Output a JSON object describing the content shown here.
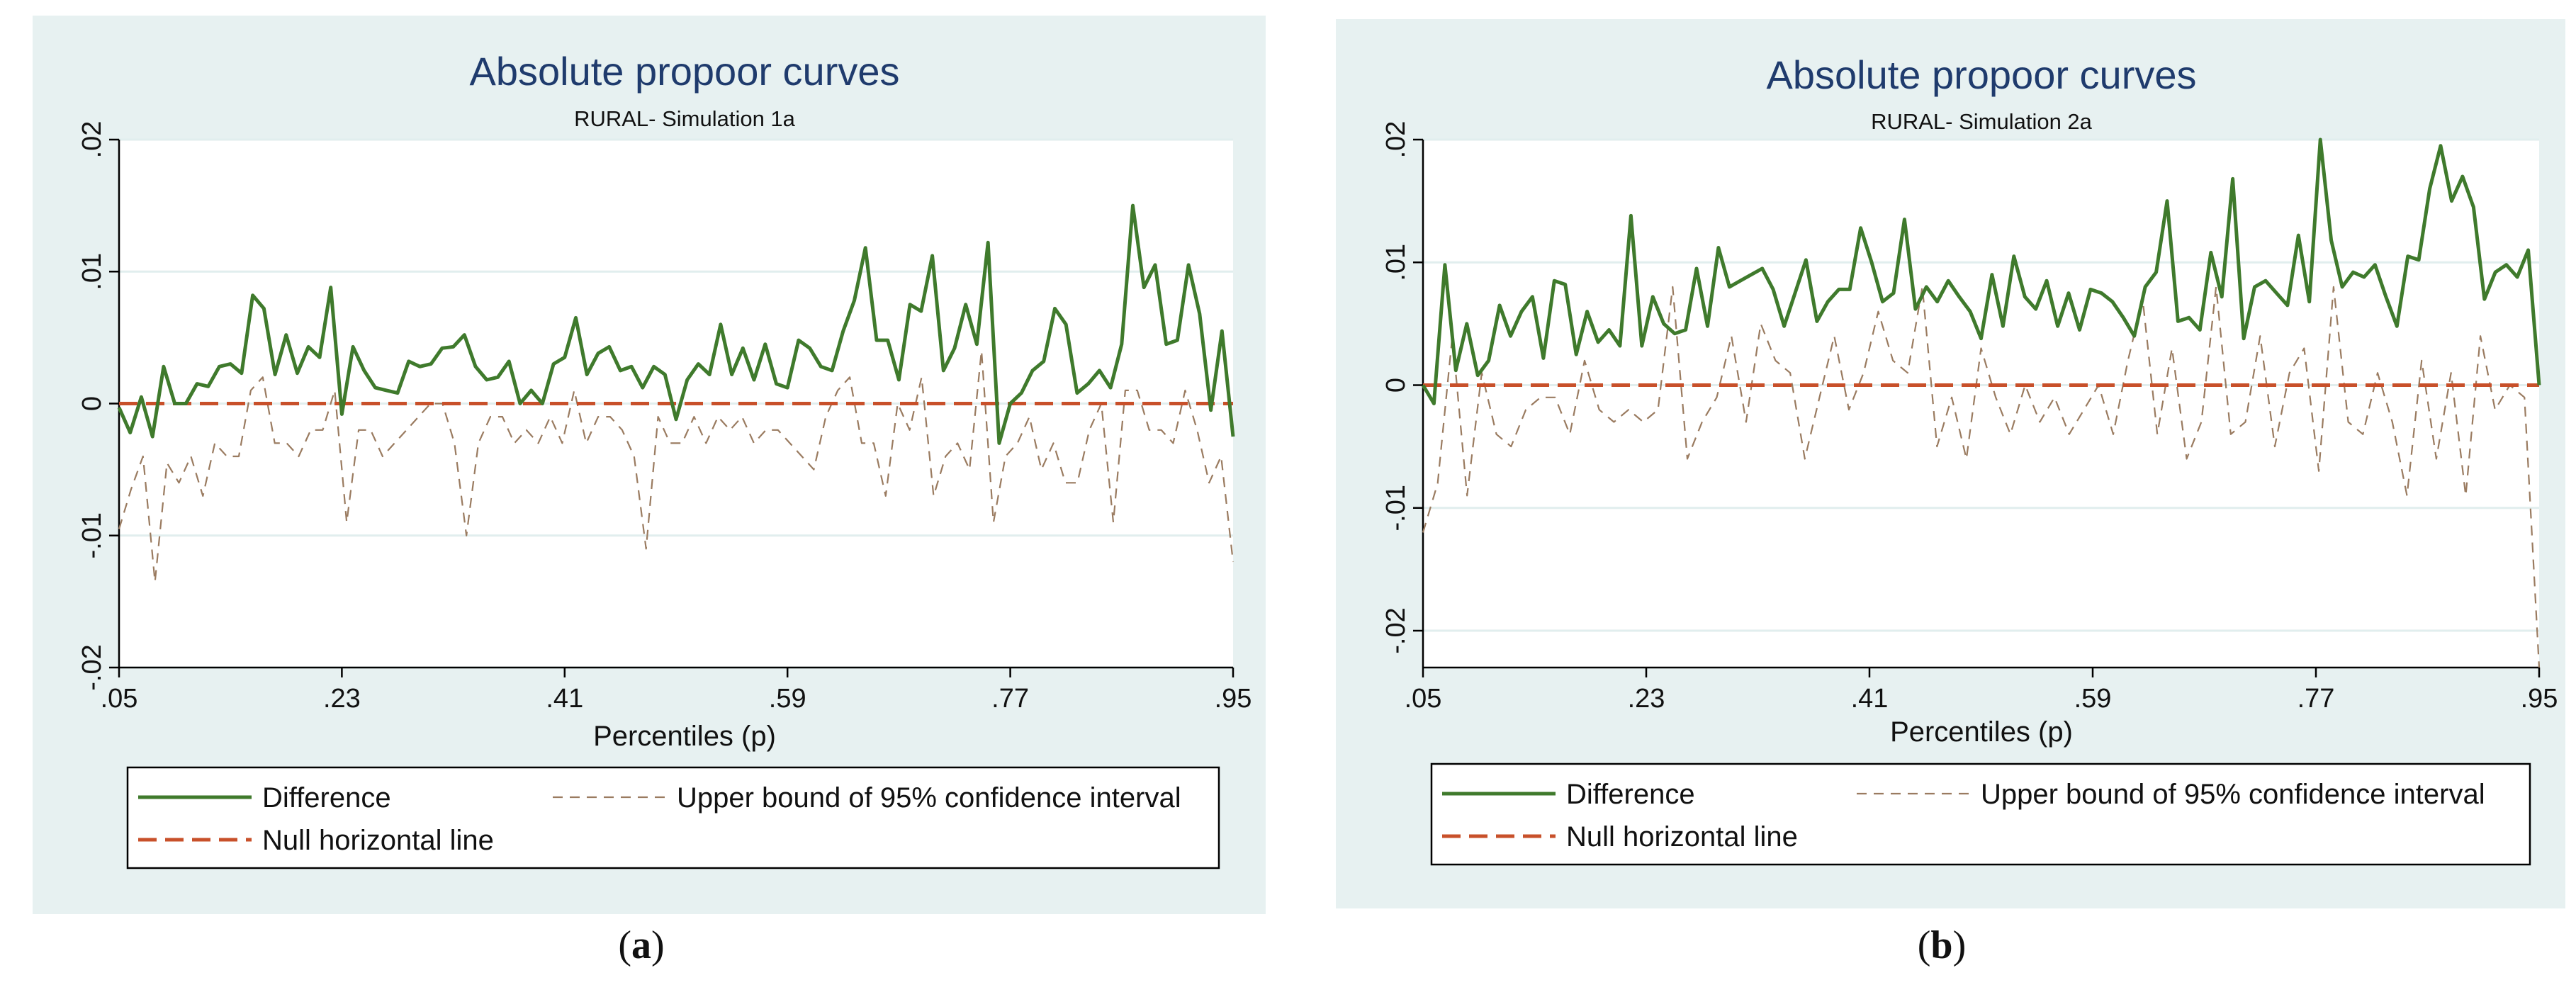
{
  "chart_data": [
    {
      "type": "line",
      "panel_label": "a",
      "title": "Absolute propoor curves",
      "subtitle": "RURAL- Simulation 1a",
      "xlabel": "Percentiles (p)",
      "ylabel": "",
      "xlim": [
        0.05,
        0.95
      ],
      "ylim": [
        -0.02,
        0.02
      ],
      "x_ticks": [
        0.05,
        0.23,
        0.41,
        0.59,
        0.77,
        0.95
      ],
      "x_tick_labels": [
        ".05",
        ".23",
        ".41",
        ".59",
        ".77",
        ".95"
      ],
      "y_ticks": [
        -0.02,
        -0.01,
        0,
        0.01,
        0.02
      ],
      "y_tick_labels": [
        "-.02",
        "-.01",
        "0",
        ".01",
        ".02"
      ],
      "legend": {
        "position": "bottom",
        "entries": [
          {
            "label": "Difference",
            "series": "difference"
          },
          {
            "label": "Upper bound of 95% confidence interval",
            "series": "upper"
          },
          {
            "label": "Null horizontal line",
            "series": "null"
          }
        ]
      },
      "series": [
        {
          "name": "Difference",
          "key": "difference",
          "color": "#3f7a2c",
          "style": "solid",
          "x_start": 0.05,
          "x_end": 0.95,
          "values": [
            -0.0003,
            -0.0022,
            0.0005,
            -0.0025,
            0.0028,
            0.0,
            0.0,
            0.0015,
            0.0013,
            0.0028,
            0.003,
            0.0023,
            0.0082,
            0.0072,
            0.0022,
            0.0052,
            0.0023,
            0.0043,
            0.0035,
            0.0088,
            -0.0008,
            0.0043,
            0.0025,
            0.0012,
            0.001,
            0.0008,
            0.0032,
            0.0028,
            0.003,
            0.0042,
            0.0043,
            0.0052,
            0.0028,
            0.0018,
            0.002,
            0.0032,
            0.0,
            0.001,
            0.0,
            0.003,
            0.0035,
            0.0065,
            0.0022,
            0.0038,
            0.0043,
            0.0025,
            0.0028,
            0.0012,
            0.0028,
            0.0022,
            -0.0012,
            0.0018,
            0.003,
            0.0022,
            0.006,
            0.0022,
            0.0042,
            0.0018,
            0.0045,
            0.0015,
            0.0012,
            0.0048,
            0.0042,
            0.0028,
            0.0025,
            0.0055,
            0.0078,
            0.0118,
            0.0048,
            0.0048,
            0.0018,
            0.0075,
            0.007,
            0.0112,
            0.0025,
            0.0042,
            0.0075,
            0.0045,
            0.0122,
            -0.003,
            0.0,
            0.0008,
            0.0025,
            0.0032,
            0.0072,
            0.006,
            0.0008,
            0.0015,
            0.0025,
            0.0012,
            0.0045,
            0.015,
            0.0088,
            0.0105,
            0.0045,
            0.0048,
            0.0105,
            0.0068,
            -0.0005,
            0.0055,
            -0.0025
          ]
        },
        {
          "name": "Upper bound of 95% confidence interval",
          "key": "upper",
          "color": "#9a7b60",
          "style": "dashed",
          "x_start": 0.05,
          "x_end": 0.95,
          "values": [
            -0.0095,
            -0.0065,
            -0.004,
            -0.0135,
            -0.0045,
            -0.006,
            -0.004,
            -0.007,
            -0.003,
            -0.004,
            -0.004,
            0.001,
            0.002,
            -0.003,
            -0.003,
            -0.004,
            -0.002,
            -0.002,
            0.001,
            -0.009,
            -0.002,
            -0.002,
            -0.004,
            -0.003,
            -0.002,
            -0.001,
            0.0,
            0.0,
            -0.003,
            -0.01,
            -0.003,
            -0.001,
            -0.001,
            -0.003,
            -0.002,
            -0.003,
            -0.001,
            -0.003,
            0.001,
            -0.003,
            -0.001,
            -0.001,
            -0.002,
            -0.004,
            -0.011,
            -0.001,
            -0.003,
            -0.003,
            -0.001,
            -0.003,
            -0.001,
            -0.002,
            -0.001,
            -0.003,
            -0.002,
            -0.002,
            -0.003,
            -0.004,
            -0.005,
            -0.001,
            0.001,
            0.002,
            -0.003,
            -0.003,
            -0.007,
            0.0,
            -0.002,
            0.002,
            -0.007,
            -0.004,
            -0.003,
            -0.005,
            0.004,
            -0.009,
            -0.004,
            -0.003,
            -0.001,
            -0.005,
            -0.003,
            -0.006,
            -0.006,
            -0.002,
            0.0,
            -0.009,
            0.001,
            0.001,
            -0.002,
            -0.002,
            -0.003,
            0.001,
            -0.002,
            -0.006,
            -0.004,
            -0.012
          ]
        },
        {
          "name": "Null horizontal line",
          "key": "null",
          "color": "#c8502a",
          "style": "long-dash",
          "x_start": 0.05,
          "x_end": 0.95,
          "values": [
            0,
            0
          ]
        }
      ]
    },
    {
      "type": "line",
      "panel_label": "b",
      "title": "Absolute propoor curves",
      "subtitle": "RURAL- Simulation 2a",
      "xlabel": "Percentiles (p)",
      "ylabel": "",
      "xlim": [
        0.05,
        0.95
      ],
      "ylim": [
        -0.023,
        0.02
      ],
      "x_ticks": [
        0.05,
        0.23,
        0.41,
        0.59,
        0.77,
        0.95
      ],
      "x_tick_labels": [
        ".05",
        ".23",
        ".41",
        ".59",
        ".77",
        ".95"
      ],
      "y_ticks": [
        -0.02,
        -0.01,
        0,
        0.01,
        0.02
      ],
      "y_tick_labels": [
        "-.02",
        "-.01",
        "0",
        ".01",
        ".02"
      ],
      "legend": {
        "position": "bottom",
        "entries": [
          {
            "label": "Difference",
            "series": "difference"
          },
          {
            "label": "Upper bound of 95% confidence interval",
            "series": "upper"
          },
          {
            "label": "Null horizontal line",
            "series": "null"
          }
        ]
      },
      "series": [
        {
          "name": "Difference",
          "key": "difference",
          "color": "#3f7a2c",
          "style": "solid",
          "x_start": 0.05,
          "x_end": 0.95,
          "values": [
            0.0,
            -0.0015,
            0.0098,
            0.0012,
            0.005,
            0.0008,
            0.002,
            0.0065,
            0.004,
            0.006,
            0.0072,
            0.0022,
            0.0085,
            0.0082,
            0.0025,
            0.006,
            0.0035,
            0.0045,
            0.0032,
            0.0138,
            0.0032,
            0.0072,
            0.005,
            0.0042,
            0.0045,
            0.0095,
            0.0048,
            0.0112,
            0.008,
            0.0085,
            0.009,
            0.0095,
            0.0078,
            0.0048,
            0.0075,
            0.0102,
            0.0052,
            0.0068,
            0.0078,
            0.0078,
            0.0128,
            0.01,
            0.0068,
            0.0075,
            0.0135,
            0.0062,
            0.008,
            0.0068,
            0.0085,
            0.0072,
            0.006,
            0.0038,
            0.009,
            0.0048,
            0.0105,
            0.0072,
            0.0062,
            0.0085,
            0.0048,
            0.0075,
            0.0045,
            0.0078,
            0.0075,
            0.0068,
            0.0055,
            0.004,
            0.008,
            0.0092,
            0.015,
            0.0052,
            0.0055,
            0.0045,
            0.0108,
            0.0072,
            0.0168,
            0.0038,
            0.008,
            0.0085,
            0.0075,
            0.0065,
            0.0122,
            0.0068,
            0.02,
            0.0118,
            0.008,
            0.0092,
            0.0088,
            0.0098,
            0.0072,
            0.0048,
            0.0105,
            0.0102,
            0.016,
            0.0195,
            0.015,
            0.017,
            0.0145,
            0.007,
            0.0092,
            0.0098,
            0.0088,
            0.011,
            0.0
          ]
        },
        {
          "name": "Upper bound of 95% confidence interval",
          "key": "upper",
          "color": "#9a7b60",
          "style": "dashed",
          "x_start": 0.05,
          "x_end": 0.95,
          "values": [
            -0.012,
            -0.008,
            0.004,
            -0.009,
            0.001,
            -0.004,
            -0.005,
            -0.002,
            -0.001,
            -0.001,
            -0.004,
            0.002,
            -0.002,
            -0.003,
            -0.002,
            -0.003,
            -0.002,
            0.008,
            -0.006,
            -0.003,
            -0.001,
            0.004,
            -0.003,
            0.005,
            0.002,
            0.001,
            -0.006,
            -0.001,
            0.004,
            -0.002,
            0.001,
            0.006,
            0.002,
            0.001,
            0.008,
            -0.005,
            -0.001,
            -0.006,
            0.003,
            -0.001,
            -0.004,
            0.0,
            -0.003,
            -0.001,
            -0.004,
            -0.002,
            0.0,
            -0.004,
            0.002,
            0.007,
            -0.004,
            0.003,
            -0.006,
            -0.003,
            0.008,
            -0.004,
            -0.003,
            0.004,
            -0.005,
            0.001,
            0.003,
            -0.007,
            0.008,
            -0.003,
            -0.004,
            0.001,
            -0.003,
            -0.009,
            0.002,
            -0.006,
            0.001,
            -0.009,
            0.004,
            -0.002,
            0.0,
            -0.001,
            -0.023
          ]
        },
        {
          "name": "Null horizontal line",
          "key": "null",
          "color": "#c8502a",
          "style": "long-dash",
          "x_start": 0.05,
          "x_end": 0.95,
          "values": [
            0,
            0
          ]
        }
      ]
    }
  ]
}
